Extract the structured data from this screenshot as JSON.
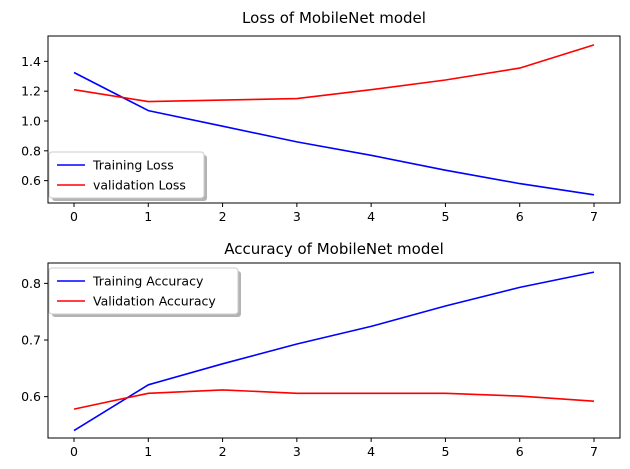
{
  "chart_data": [
    {
      "type": "line",
      "title": "Loss of MobileNet model",
      "x": [
        0,
        1,
        2,
        3,
        4,
        5,
        6,
        7
      ],
      "xlim": [
        -0.35,
        7.35
      ],
      "ylim": [
        0.45,
        1.57
      ],
      "xticks": [
        0,
        1,
        2,
        3,
        4,
        5,
        6,
        7
      ],
      "yticks": [
        0.6,
        0.8,
        1.0,
        1.2,
        1.4
      ],
      "ytick_labels": [
        "0.6",
        "0.8",
        "1.0",
        "1.2",
        "1.4"
      ],
      "grid": false,
      "legend": "lower-left",
      "series": [
        {
          "name": "Training Loss",
          "color": "#0000ff",
          "values": [
            1.325,
            1.07,
            0.965,
            0.86,
            0.77,
            0.67,
            0.58,
            0.505
          ]
        },
        {
          "name": "validation Loss",
          "color": "#ff0000",
          "values": [
            1.21,
            1.13,
            1.14,
            1.15,
            1.21,
            1.275,
            1.355,
            1.51
          ]
        }
      ]
    },
    {
      "type": "line",
      "title": "Accuracy of MobileNet model",
      "x": [
        0,
        1,
        2,
        3,
        4,
        5,
        6,
        7
      ],
      "xlim": [
        -0.35,
        7.35
      ],
      "ylim": [
        0.527,
        0.836
      ],
      "xticks": [
        0,
        1,
        2,
        3,
        4,
        5,
        6,
        7
      ],
      "yticks": [
        0.6,
        0.7,
        0.8
      ],
      "ytick_labels": [
        "0.6",
        "0.7",
        "0.8"
      ],
      "grid": false,
      "legend": "upper-left",
      "series": [
        {
          "name": "Training Accuracy",
          "color": "#0000ff",
          "values": [
            0.54,
            0.621,
            0.658,
            0.693,
            0.724,
            0.76,
            0.793,
            0.82
          ]
        },
        {
          "name": "Validation Accuracy",
          "color": "#ff0000",
          "values": [
            0.578,
            0.606,
            0.612,
            0.606,
            0.606,
            0.606,
            0.601,
            0.592
          ]
        }
      ]
    }
  ]
}
